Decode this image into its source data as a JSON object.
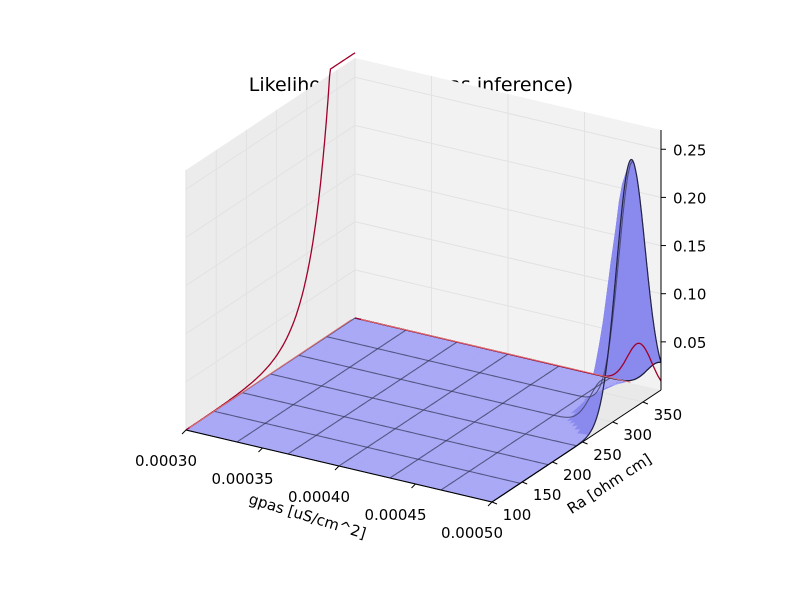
{
  "chart_data": {
    "type": "surface3d",
    "title": "Likelihood (Ra-cm-gpas inference)",
    "xlabel": "gpas [uS/cm^2]",
    "ylabel": "Ra [ohm cm]",
    "zlabel": "",
    "xlim": [
      0.0003,
      0.0005
    ],
    "ylim": [
      100,
      380
    ],
    "zlim": [
      0.0,
      0.27
    ],
    "x_ticks": [
      "0.00030",
      "0.00035",
      "0.00040",
      "0.00045",
      "0.00050"
    ],
    "y_ticks": [
      "100",
      "150",
      "200",
      "250",
      "300",
      "350"
    ],
    "z_ticks": [
      "0.05",
      "0.10",
      "0.15",
      "0.20",
      "0.25"
    ],
    "x_tick_values": [
      0.0003,
      0.00035,
      0.0004,
      0.00045,
      0.0005
    ],
    "y_tick_values": [
      100,
      150,
      200,
      250,
      300,
      350
    ],
    "z_tick_values": [
      0.05,
      0.1,
      0.15,
      0.2,
      0.25
    ],
    "surface": {
      "peak": {
        "gpas": 0.0005,
        "Ra": 330,
        "likelihood": 0.26
      },
      "color": "#7b7bff",
      "edge_color": "#1a1a3a"
    },
    "projected_curves": [
      {
        "plane": "gpas",
        "at": 0.0003,
        "color": "#a0002a",
        "description": "marginal along Ra"
      },
      {
        "plane": "Ra",
        "at": 380,
        "color": "#a0002a",
        "description": "marginal along gpas"
      }
    ],
    "colors": {
      "surface": "#7b7bff",
      "contour": "#a0002a",
      "pane": "#f2f2f2",
      "grid": "#e6e6e6"
    }
  }
}
